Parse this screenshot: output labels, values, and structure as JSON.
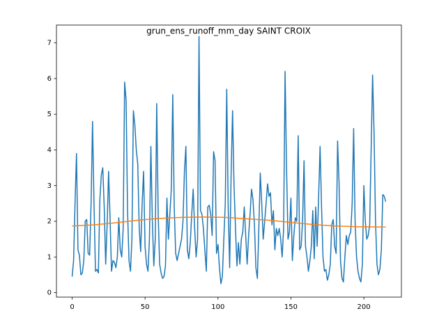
{
  "chart_data": {
    "type": "line",
    "title": "grun_ens_runoff_mm_day SAINT CROIX",
    "xlim": [
      -10.75,
      225.75
    ],
    "xticks": [
      0,
      50,
      100,
      150,
      200
    ],
    "ylim": [
      -0.125,
      7.5
    ],
    "yticks": [
      0,
      1,
      2,
      3,
      4,
      5,
      6,
      7
    ],
    "grid": false,
    "series": [
      {
        "color": "#1f77b4",
        "x": [
          0,
          1,
          2,
          3,
          4,
          5,
          6,
          7,
          8,
          9,
          10,
          11,
          12,
          13,
          14,
          15,
          16,
          17,
          18,
          19,
          20,
          21,
          22,
          23,
          24,
          25,
          26,
          27,
          28,
          29,
          30,
          31,
          32,
          33,
          34,
          35,
          36,
          37,
          38,
          39,
          40,
          41,
          42,
          43,
          44,
          45,
          46,
          47,
          48,
          49,
          50,
          51,
          52,
          53,
          54,
          55,
          56,
          57,
          58,
          59,
          60,
          61,
          62,
          63,
          64,
          65,
          66,
          67,
          68,
          69,
          70,
          71,
          72,
          73,
          74,
          75,
          76,
          77,
          78,
          79,
          80,
          81,
          82,
          83,
          84,
          85,
          86,
          87,
          88,
          89,
          90,
          91,
          92,
          93,
          94,
          95,
          96,
          97,
          98,
          99,
          100,
          101,
          102,
          103,
          104,
          105,
          106,
          107,
          108,
          109,
          110,
          111,
          112,
          113,
          114,
          115,
          116,
          117,
          118,
          119,
          120,
          121,
          122,
          123,
          124,
          125,
          126,
          127,
          128,
          129,
          130,
          131,
          132,
          133,
          134,
          135,
          136,
          137,
          138,
          139,
          140,
          141,
          142,
          143,
          144,
          145,
          146,
          147,
          148,
          149,
          150,
          151,
          152,
          153,
          154,
          155,
          156,
          157,
          158,
          159,
          160,
          161,
          162,
          163,
          164,
          165,
          166,
          167,
          168,
          169,
          170,
          171,
          172,
          173,
          174,
          175,
          176,
          177,
          178,
          179,
          180,
          181,
          182,
          183,
          184,
          185,
          186,
          187,
          188,
          189,
          190,
          191,
          192,
          193,
          194,
          195,
          196,
          197,
          198,
          199,
          200,
          201,
          202,
          203,
          204,
          205,
          206,
          207,
          208,
          209,
          210,
          211,
          212,
          213,
          214,
          215
        ],
        "values": [
          0.45,
          0.9,
          2.5,
          3.9,
          1.2,
          1.05,
          0.5,
          0.55,
          0.9,
          2.0,
          2.05,
          1.1,
          1.05,
          2.5,
          4.8,
          2.5,
          0.6,
          0.65,
          0.55,
          2.6,
          3.3,
          3.5,
          2.4,
          0.8,
          1.9,
          3.4,
          2.1,
          0.6,
          0.9,
          0.85,
          0.7,
          1.0,
          2.1,
          1.2,
          1.0,
          1.8,
          5.9,
          5.4,
          2.3,
          0.9,
          0.6,
          1.5,
          5.1,
          4.7,
          4.0,
          3.6,
          1.8,
          1.15,
          2.5,
          3.4,
          1.3,
          0.8,
          0.6,
          1.5,
          4.1,
          2.0,
          0.75,
          1.5,
          5.3,
          2.2,
          0.8,
          0.55,
          0.4,
          0.45,
          0.75,
          2.65,
          1.5,
          2.2,
          2.9,
          5.55,
          2.4,
          1.1,
          0.9,
          1.1,
          1.3,
          1.5,
          2.0,
          3.4,
          4.1,
          1.2,
          0.95,
          1.4,
          2.2,
          2.9,
          1.8,
          1.0,
          1.5,
          7.18,
          2.3,
          2.2,
          1.8,
          1.2,
          0.6,
          2.4,
          2.45,
          2.2,
          1.6,
          3.95,
          3.7,
          1.1,
          1.35,
          0.7,
          0.25,
          0.45,
          1.5,
          2.5,
          5.7,
          2.4,
          0.7,
          3.3,
          5.1,
          3.0,
          1.8,
          0.75,
          1.4,
          0.8,
          1.5,
          1.7,
          2.4,
          1.6,
          0.8,
          1.6,
          2.2,
          2.9,
          2.6,
          1.9,
          0.7,
          0.4,
          1.8,
          3.35,
          2.5,
          1.5,
          2.0,
          2.5,
          3.05,
          2.7,
          2.8,
          1.9,
          2.3,
          1.2,
          1.8,
          1.6,
          1.8,
          1.5,
          1.0,
          1.8,
          6.2,
          3.5,
          1.5,
          1.7,
          2.65,
          0.9,
          1.6,
          2.1,
          2.0,
          4.4,
          1.2,
          1.3,
          2.0,
          3.7,
          1.3,
          1.0,
          0.6,
          0.9,
          1.3,
          2.3,
          0.95,
          2.4,
          1.3,
          2.7,
          4.1,
          2.4,
          1.0,
          0.6,
          0.65,
          0.35,
          0.5,
          0.8,
          1.9,
          2.05,
          1.3,
          1.1,
          4.25,
          3.1,
          0.9,
          0.4,
          0.3,
          1.0,
          1.6,
          1.35,
          1.6,
          1.7,
          2.5,
          4.6,
          2.0,
          1.0,
          0.6,
          0.4,
          0.3,
          0.8,
          3.0,
          2.0,
          1.5,
          1.6,
          1.9,
          4.0,
          6.1,
          4.5,
          2.0,
          0.8,
          0.5,
          0.65,
          1.2,
          2.75,
          2.7,
          2.55
        ]
      },
      {
        "color": "#ff7f0e",
        "x": [
          0,
          15,
          30,
          45,
          60,
          75,
          90,
          105,
          120,
          135,
          150,
          165,
          180,
          195,
          210,
          215
        ],
        "values": [
          1.87,
          1.9,
          1.96,
          2.03,
          2.08,
          2.11,
          2.12,
          2.11,
          2.07,
          2.03,
          1.97,
          1.91,
          1.87,
          1.85,
          1.84,
          1.84
        ]
      }
    ]
  }
}
